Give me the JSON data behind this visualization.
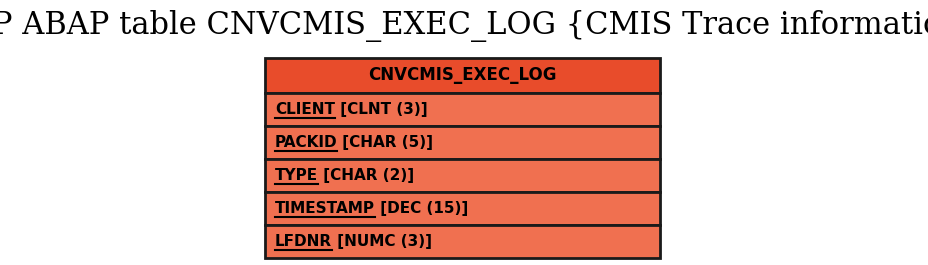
{
  "title": "SAP ABAP table CNVCMIS_EXEC_LOG {CMIS Trace information}",
  "title_fontsize": 22,
  "title_font": "DejaVu Serif",
  "background_color": "#ffffff",
  "table_name": "CNVCMIS_EXEC_LOG",
  "fields": [
    {
      "key": "CLIENT",
      "type": " [CLNT (3)]"
    },
    {
      "key": "PACKID",
      "type": " [CHAR (5)]"
    },
    {
      "key": "TYPE",
      "type": " [CHAR (2)]"
    },
    {
      "key": "TIMESTAMP",
      "type": " [DEC (15)]"
    },
    {
      "key": "LFDNR",
      "type": " [NUMC (3)]"
    }
  ],
  "box_fill_color": "#f07050",
  "box_border_color": "#1a1a1a",
  "header_fill_color": "#e84c2b",
  "text_color": "#000000",
  "table_font": "DejaVu Sans",
  "table_fontsize": 11,
  "header_fontsize": 12,
  "fig_width": 9.29,
  "fig_height": 2.65,
  "dpi": 100
}
